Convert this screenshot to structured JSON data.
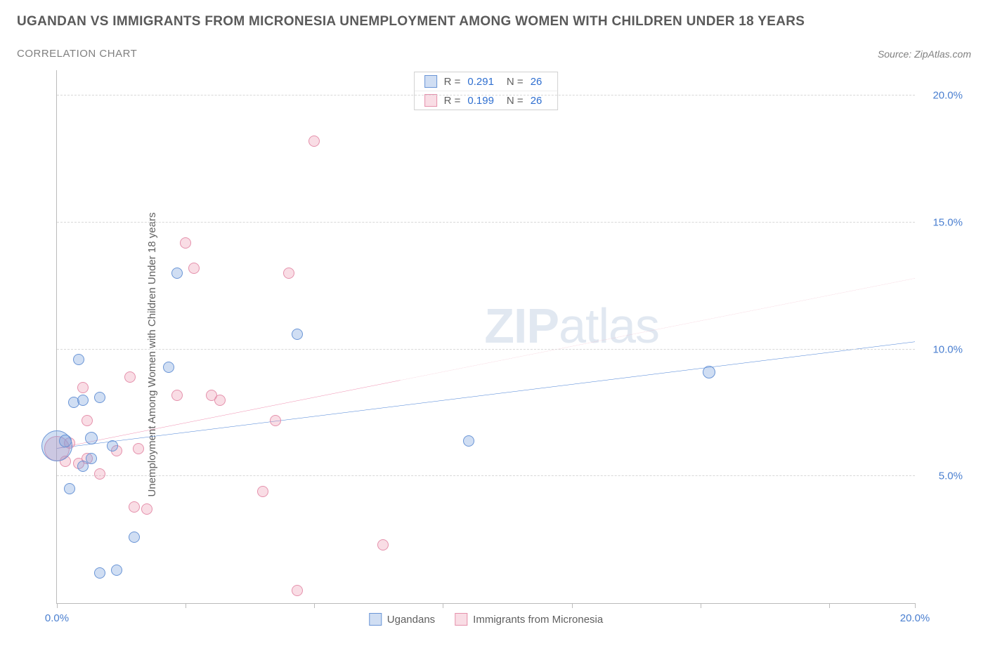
{
  "header": {
    "title": "UGANDAN VS IMMIGRANTS FROM MICRONESIA UNEMPLOYMENT AMONG WOMEN WITH CHILDREN UNDER 18 YEARS",
    "subtitle": "CORRELATION CHART",
    "source": "Source: ZipAtlas.com"
  },
  "watermark": {
    "part1": "ZIP",
    "part2": "atlas"
  },
  "chart": {
    "type": "scatter",
    "ylabel": "Unemployment Among Women with Children Under 18 years",
    "xlim": [
      0,
      20
    ],
    "ylim": [
      0,
      21
    ],
    "xtick_positions": [
      0,
      3,
      6,
      9,
      12,
      15,
      18,
      20
    ],
    "xtick_labels_shown": {
      "0": "0.0%",
      "20": "20.0%"
    },
    "ytick_positions": [
      5,
      10,
      15,
      20
    ],
    "ytick_labels": {
      "5": "5.0%",
      "10": "10.0%",
      "15": "15.0%",
      "20": "20.0%"
    },
    "background_color": "#ffffff",
    "grid_color": "#d8d8d8",
    "axis_color": "#bbbbbb",
    "tick_label_color": "#4a7fd0",
    "label_color": "#606060",
    "series": {
      "ugandans": {
        "label": "Ugandans",
        "fill": "rgba(120,160,220,0.35)",
        "stroke": "#6a95d6",
        "trend_color": "#2f6fd0",
        "trend_dash_color": "#2f6fd0",
        "r_value": "0.291",
        "n_value": "26",
        "trend": {
          "x1": 0,
          "y1": 6.1,
          "x2": 20,
          "y2": 10.3
        },
        "solid_until_x": 20,
        "points": [
          {
            "x": 0.0,
            "y": 6.2,
            "r": 22
          },
          {
            "x": 0.2,
            "y": 6.4,
            "r": 9
          },
          {
            "x": 0.3,
            "y": 4.5,
            "r": 8
          },
          {
            "x": 0.4,
            "y": 7.9,
            "r": 8
          },
          {
            "x": 0.5,
            "y": 9.6,
            "r": 8
          },
          {
            "x": 0.6,
            "y": 5.4,
            "r": 8
          },
          {
            "x": 0.6,
            "y": 8.0,
            "r": 8
          },
          {
            "x": 0.8,
            "y": 5.7,
            "r": 8
          },
          {
            "x": 0.8,
            "y": 6.5,
            "r": 9
          },
          {
            "x": 1.0,
            "y": 8.1,
            "r": 8
          },
          {
            "x": 1.0,
            "y": 1.2,
            "r": 8
          },
          {
            "x": 1.3,
            "y": 6.2,
            "r": 8
          },
          {
            "x": 1.4,
            "y": 1.3,
            "r": 8
          },
          {
            "x": 1.8,
            "y": 2.6,
            "r": 8
          },
          {
            "x": 2.6,
            "y": 9.3,
            "r": 8
          },
          {
            "x": 2.8,
            "y": 13.0,
            "r": 8
          },
          {
            "x": 5.6,
            "y": 10.6,
            "r": 8
          },
          {
            "x": 9.6,
            "y": 6.4,
            "r": 8
          },
          {
            "x": 15.2,
            "y": 9.1,
            "r": 9
          }
        ]
      },
      "micronesia": {
        "label": "Immigrants from Micronesia",
        "fill": "rgba(235,150,175,0.32)",
        "stroke": "#e591ac",
        "trend_color": "#e85b8c",
        "trend_dash_color": "#eea7bc",
        "r_value": "0.199",
        "n_value": "26",
        "trend": {
          "x1": 0,
          "y1": 6.1,
          "x2": 20,
          "y2": 12.8
        },
        "solid_until_x": 8,
        "points": [
          {
            "x": 0.0,
            "y": 6.1,
            "r": 18
          },
          {
            "x": 0.2,
            "y": 5.6,
            "r": 8
          },
          {
            "x": 0.3,
            "y": 6.3,
            "r": 8
          },
          {
            "x": 0.5,
            "y": 5.5,
            "r": 8
          },
          {
            "x": 0.6,
            "y": 8.5,
            "r": 8
          },
          {
            "x": 0.7,
            "y": 5.7,
            "r": 8
          },
          {
            "x": 0.7,
            "y": 7.2,
            "r": 8
          },
          {
            "x": 1.0,
            "y": 5.1,
            "r": 8
          },
          {
            "x": 1.4,
            "y": 6.0,
            "r": 8
          },
          {
            "x": 1.7,
            "y": 8.9,
            "r": 8
          },
          {
            "x": 1.8,
            "y": 3.8,
            "r": 8
          },
          {
            "x": 1.9,
            "y": 6.1,
            "r": 8
          },
          {
            "x": 2.1,
            "y": 3.7,
            "r": 8
          },
          {
            "x": 2.8,
            "y": 8.2,
            "r": 8
          },
          {
            "x": 3.0,
            "y": 14.2,
            "r": 8
          },
          {
            "x": 3.2,
            "y": 13.2,
            "r": 8
          },
          {
            "x": 3.6,
            "y": 8.2,
            "r": 8
          },
          {
            "x": 3.8,
            "y": 8.0,
            "r": 8
          },
          {
            "x": 4.8,
            "y": 4.4,
            "r": 8
          },
          {
            "x": 5.1,
            "y": 7.2,
            "r": 8
          },
          {
            "x": 5.4,
            "y": 13.0,
            "r": 8
          },
          {
            "x": 5.6,
            "y": 0.5,
            "r": 8
          },
          {
            "x": 6.0,
            "y": 18.2,
            "r": 8
          },
          {
            "x": 7.6,
            "y": 2.3,
            "r": 8
          }
        ]
      }
    }
  }
}
